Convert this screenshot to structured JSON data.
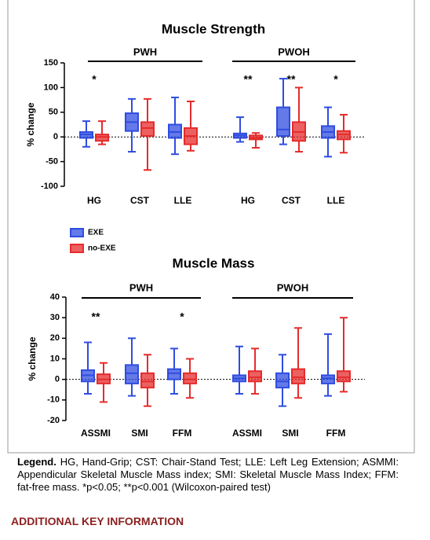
{
  "chart_data": [
    {
      "type": "box",
      "title": "Muscle Strength",
      "y_label": "% change",
      "ylim": [
        -100,
        150
      ],
      "yticks": [
        -100,
        -50,
        0,
        50,
        100,
        150
      ],
      "zero_line": true,
      "groups": [
        {
          "name": "PWH",
          "categories": [
            "HG",
            "CST",
            "LLE"
          ],
          "significance": [
            "*",
            null,
            null
          ]
        },
        {
          "name": "PWOH",
          "categories": [
            "HG",
            "CST",
            "LLE"
          ],
          "significance": [
            "**",
            "**",
            "*"
          ]
        }
      ],
      "series": [
        {
          "name": "EXE",
          "color": "#2f4de0",
          "values": [
            [
              {
                "min": -20,
                "q1": -2,
                "median": 5,
                "q3": 10,
                "max": 32
              },
              {
                "min": -30,
                "q1": 12,
                "median": 30,
                "q3": 48,
                "max": 77
              },
              {
                "min": -35,
                "q1": -2,
                "median": 10,
                "q3": 25,
                "max": 80
              }
            ],
            [
              {
                "min": -10,
                "q1": -2,
                "median": 3,
                "q3": 7,
                "max": 40
              },
              {
                "min": -15,
                "q1": 2,
                "median": 15,
                "q3": 60,
                "max": 118
              },
              {
                "min": -40,
                "q1": -2,
                "median": 10,
                "q3": 22,
                "max": 60
              }
            ]
          ]
        },
        {
          "name": "no-EXE",
          "color": "#e62b2b",
          "values": [
            [
              {
                "min": -15,
                "q1": -8,
                "median": 0,
                "q3": 5,
                "max": 32
              },
              {
                "min": -67,
                "q1": 2,
                "median": 18,
                "q3": 30,
                "max": 77
              },
              {
                "min": -28,
                "q1": -15,
                "median": 2,
                "q3": 18,
                "max": 72
              }
            ],
            [
              {
                "min": -22,
                "q1": -5,
                "median": -2,
                "q3": 3,
                "max": 8
              },
              {
                "min": -30,
                "q1": -8,
                "median": 10,
                "q3": 30,
                "max": 100
              },
              {
                "min": -32,
                "q1": -5,
                "median": 5,
                "q3": 12,
                "max": 45
              }
            ]
          ]
        }
      ]
    },
    {
      "type": "box",
      "title": "Muscle Mass",
      "y_label": "% change",
      "ylim": [
        -20,
        40
      ],
      "yticks": [
        -20,
        -10,
        0,
        10,
        20,
        30,
        40
      ],
      "zero_line": true,
      "groups": [
        {
          "name": "PWH",
          "categories": [
            "ASSMI",
            "SMI",
            "FFM"
          ],
          "significance": [
            "**",
            null,
            "*"
          ]
        },
        {
          "name": "PWOH",
          "categories": [
            "ASSMI",
            "SMI",
            "FFM"
          ],
          "significance": [
            null,
            null,
            null
          ]
        }
      ],
      "series": [
        {
          "color": "#2f4de0",
          "values": [
            [
              {
                "min": -7,
                "q1": -1,
                "median": 2,
                "q3": 4.5,
                "max": 18
              },
              {
                "min": -8,
                "q1": -2,
                "median": 3,
                "q3": 7,
                "max": 20
              },
              {
                "min": -7,
                "q1": 0,
                "median": 3,
                "q3": 5,
                "max": 15
              }
            ],
            [
              {
                "min": -7,
                "q1": -1,
                "median": 0.5,
                "q3": 2,
                "max": 16
              },
              {
                "min": -13,
                "q1": -4,
                "median": -1,
                "q3": 3,
                "max": 12
              },
              {
                "min": -8,
                "q1": -2,
                "median": 0.5,
                "q3": 2,
                "max": 22
              }
            ]
          ]
        },
        {
          "color": "#e62b2b",
          "values": [
            [
              {
                "min": -11,
                "q1": -2,
                "median": 0,
                "q3": 2.5,
                "max": 8
              },
              {
                "min": -13,
                "q1": -4,
                "median": -1,
                "q3": 3,
                "max": 12
              },
              {
                "min": -9,
                "q1": -2,
                "median": 0,
                "q3": 3,
                "max": 10
              }
            ],
            [
              {
                "min": -7,
                "q1": -1,
                "median": 1,
                "q3": 4,
                "max": 15
              },
              {
                "min": -9,
                "q1": -2,
                "median": 1,
                "q3": 5,
                "max": 25
              },
              {
                "min": -6,
                "q1": -1,
                "median": 1,
                "q3": 4,
                "max": 30
              }
            ]
          ]
        }
      ]
    }
  ],
  "caption": {
    "lead": "Legend.",
    "text": "HG, Hand-Grip; CST: Chair-Stand Test; LLE: Left Leg Extension; ASMMI: Appendicular Skeletal Muscle Mass index; SMI: Skeletal Muscle Mass Index; FFM: fat-free mass. *p<0.05; **p<0.001 (Wilcoxon-paired test)"
  },
  "heading": "ADDITIONAL KEY INFORMATION"
}
